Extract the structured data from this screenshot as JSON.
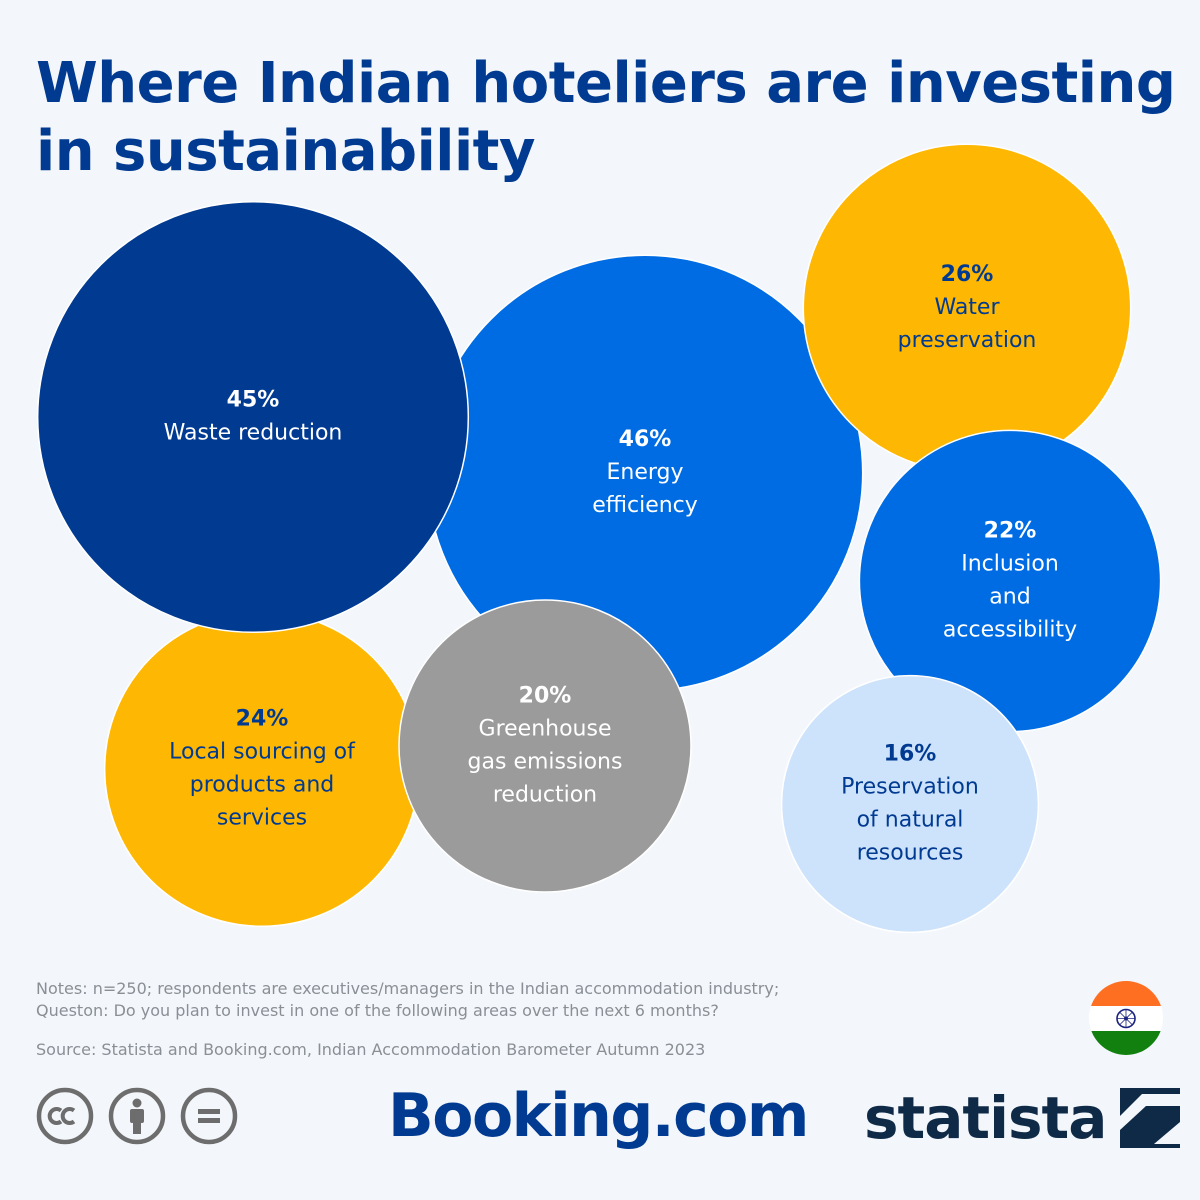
{
  "title": "Where Indian hoteliers are investing in sustainability",
  "chart_data": {
    "type": "bubble",
    "title": "Where Indian hoteliers are investing in sustainability",
    "unit": "%",
    "categories": [
      "Waste reduction",
      "Energy efficiency",
      "Water preservation",
      "Inclusion and accessibility",
      "Local sourcing of products and services",
      "Greenhouse gas emissions reduction",
      "Preservation of natural resources"
    ],
    "values": [
      45,
      46,
      26,
      22,
      24,
      20,
      16
    ],
    "value_labels": [
      "45%",
      "46%",
      "26%",
      "22%",
      "24%",
      "20%",
      "16%"
    ],
    "label_lines": [
      [
        "Waste reduction"
      ],
      [
        "Energy",
        "efficiency"
      ],
      [
        "Water",
        "preservation"
      ],
      [
        "Inclusion",
        "and",
        "accessibility"
      ],
      [
        "Local sourcing of",
        "products and",
        "services"
      ],
      [
        "Greenhouse",
        "gas emissions",
        "reduction"
      ],
      [
        "Preservation",
        "of natural",
        "resources"
      ]
    ],
    "colors": [
      "#003a91",
      "#006ce4",
      "#feb702",
      "#006ce4",
      "#feb702",
      "#9b9b9b",
      "#cde2fb"
    ],
    "text_colors": [
      "#ffffff",
      "#ffffff",
      "#003a91",
      "#ffffff",
      "#003a91",
      "#ffffff",
      "#003a91"
    ],
    "grid": false,
    "legend": "none"
  },
  "notes_lines": [
    "Notes: n=250; respondents are executives/managers in the Indian accommodation industry;",
    "Queston: Do you plan to invest in one of the following areas over the next 6 months?"
  ],
  "source": "Source: Statista and Booking.com, Indian Accommodation Barometer Autumn 2023",
  "flag": {
    "icon": "india-flag-icon",
    "colors": [
      "#ff6f21",
      "#ffffff",
      "#11800f",
      "#1a237e"
    ]
  },
  "license_icons": [
    "creative-commons-icon",
    "attribution-icon",
    "no-derivatives-icon"
  ],
  "brands": {
    "booking": "Booking.com",
    "statista": "statista"
  }
}
